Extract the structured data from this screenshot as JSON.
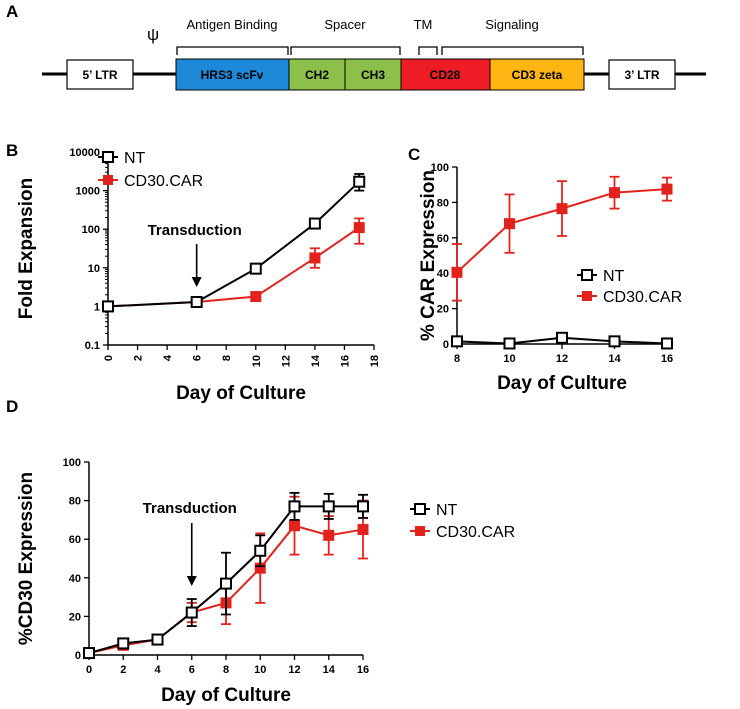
{
  "panels": {
    "a": "A",
    "b": "B",
    "c": "C",
    "d": "D"
  },
  "construct": {
    "ltr5": "5’ LTR",
    "psi": "ψ",
    "ltr3": "3’ LTR",
    "groups": [
      "Antigen Binding",
      "Spacer",
      "TM",
      "Signaling"
    ],
    "segments": [
      {
        "label": "HRS3 scFv",
        "color": "#1e88d9"
      },
      {
        "label": "CH2",
        "color": "#8cc04b"
      },
      {
        "label": "CH3",
        "color": "#8cc04b"
      },
      {
        "label": "CD28",
        "color": "#ee1c25"
      },
      {
        "label": "CD3 zeta",
        "color": "#ffb612"
      }
    ]
  },
  "colors": {
    "nt": "#000000",
    "car": "#e3221d"
  },
  "chart_data": [
    {
      "id": "B",
      "type": "line",
      "yscale": "log",
      "xlabel": "Day of Culture",
      "ylabel": "Fold Expansion",
      "xlim": [
        0,
        18
      ],
      "ylim": [
        0.1,
        10000
      ],
      "xticks": [
        "0",
        "2",
        "4",
        "6",
        "8",
        "10",
        "12",
        "14",
        "16",
        "18"
      ],
      "yticks": [
        "0.1",
        "1",
        "10",
        "100",
        "1000",
        "10000"
      ],
      "annotation": "Transduction",
      "annotation_x": 6,
      "series": [
        {
          "name": "NT",
          "x": [
            0,
            6,
            10,
            14,
            17
          ],
          "y": [
            1,
            1.3,
            9.5,
            140,
            1700
          ],
          "err_hi": [
            1.1,
            1.4,
            11,
            185,
            2700
          ],
          "err_lo": [
            0.9,
            1.2,
            8,
            105,
            1000
          ]
        },
        {
          "name": "CD30.CAR",
          "x": [
            0,
            6,
            10,
            14,
            17
          ],
          "y": [
            1,
            1.3,
            1.8,
            18,
            110
          ],
          "err_hi": [
            1.1,
            1.4,
            2,
            32,
            190
          ],
          "err_lo": [
            0.9,
            1.2,
            1.6,
            10,
            42
          ]
        }
      ]
    },
    {
      "id": "C",
      "type": "line",
      "xlabel": "Day of Culture",
      "ylabel": "% CAR Expression",
      "xlim": [
        8,
        16
      ],
      "ylim": [
        0,
        100
      ],
      "xticks": [
        "8",
        "10",
        "12",
        "14",
        "16"
      ],
      "yticks": [
        "0",
        "20",
        "40",
        "60",
        "80",
        "100"
      ],
      "series": [
        {
          "name": "NT",
          "x": [
            8,
            10,
            12,
            14,
            16
          ],
          "y": [
            1.5,
            0.3,
            3.5,
            1.5,
            0.3
          ],
          "err": [
            0.8,
            0.3,
            1.2,
            0.8,
            0.3
          ]
        },
        {
          "name": "CD30.CAR",
          "x": [
            8,
            10,
            12,
            14,
            16
          ],
          "y": [
            40.5,
            68,
            76.5,
            85.5,
            87.5
          ],
          "err": [
            16,
            16.5,
            15.5,
            9,
            6.5
          ]
        }
      ]
    },
    {
      "id": "D",
      "type": "line",
      "xlabel": "Day of Culture",
      "ylabel": "%CD30 Expression",
      "xlim": [
        0,
        16
      ],
      "ylim": [
        0,
        100
      ],
      "xticks": [
        "0",
        "2",
        "4",
        "6",
        "8",
        "10",
        "12",
        "14",
        "16"
      ],
      "yticks": [
        "0",
        "20",
        "40",
        "60",
        "80",
        "100"
      ],
      "annotation": "Transduction",
      "annotation_x": 6,
      "series": [
        {
          "name": "NT",
          "x": [
            0,
            2,
            4,
            6,
            8,
            10,
            12,
            14,
            16
          ],
          "y": [
            1,
            6,
            8,
            22,
            37,
            54,
            77,
            77,
            77
          ],
          "err": [
            0.8,
            2,
            1.5,
            7,
            16,
            8,
            7,
            6.5,
            6
          ]
        },
        {
          "name": "CD30.CAR",
          "x": [
            0,
            2,
            4,
            6,
            8,
            10,
            12,
            14,
            16
          ],
          "y": [
            1,
            5,
            8,
            22,
            27,
            45,
            67,
            62,
            65
          ],
          "err": [
            0.8,
            2,
            1.5,
            5,
            11,
            18,
            15,
            10,
            15
          ]
        }
      ]
    }
  ]
}
